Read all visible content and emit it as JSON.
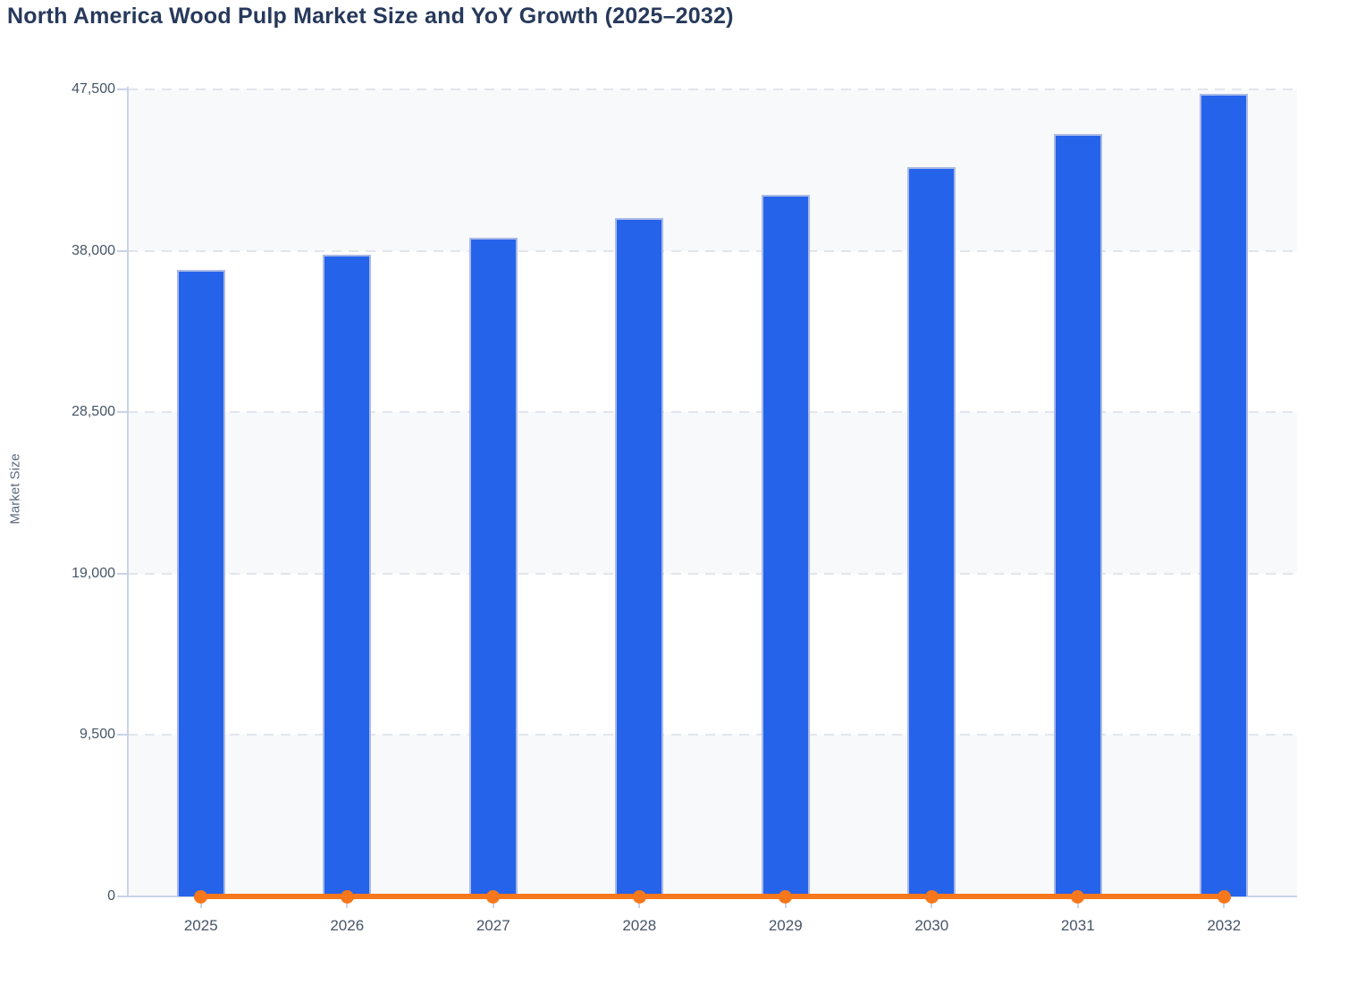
{
  "page": {
    "title": "North America Wood Pulp Market Size and YoY Growth (2025–2032)"
  },
  "chart_data": {
    "type": "bar",
    "title": "North America Wood Pulp Market Size and YoY Growth (2025–2032)",
    "xlabel": "",
    "ylabel": "Market Size",
    "categories": [
      "2025",
      "2026",
      "2027",
      "2028",
      "2029",
      "2030",
      "2031",
      "2032"
    ],
    "series": [
      {
        "name": "Market Size",
        "type": "bar",
        "color": "#2563eb",
        "border_color": "#aab9e6",
        "values": [
          36870,
          37770,
          38780,
          39930,
          41290,
          42930,
          44870,
          47240
        ]
      },
      {
        "name": "YoY Growth",
        "type": "line",
        "color": "#f6771c",
        "marker": "circle",
        "values_estimated_percent": [
          2.4,
          2.4,
          2.7,
          3.0,
          3.4,
          4.0,
          4.5,
          5.3
        ],
        "plots_at_baseline": true
      }
    ],
    "ylim": [
      0,
      47500
    ],
    "yticks": [
      {
        "value": 0,
        "label": "0"
      },
      {
        "value": 9500,
        "label": "9,500"
      },
      {
        "value": 19000,
        "label": "19,000"
      },
      {
        "value": 28500,
        "label": "28,500"
      },
      {
        "value": 38000,
        "label": "38,000"
      },
      {
        "value": 47500,
        "label": "47,500"
      }
    ],
    "grid": "horizontal dashed",
    "split_area_alternating_fill": [
      "#f8f9fb",
      "#ffffff"
    ],
    "legend": "none",
    "colors": {
      "bar_fill": "#2563eb",
      "bar_border": "#aab9e6",
      "line_orange": "#f6771c",
      "axis_line": "#c9d2e6",
      "gridline": "#e2e5ec",
      "title_text": "#27395b",
      "tick_text": "#475569",
      "axis_title_text": "#5c6b80",
      "band_fill": "#f8f9fb"
    }
  }
}
